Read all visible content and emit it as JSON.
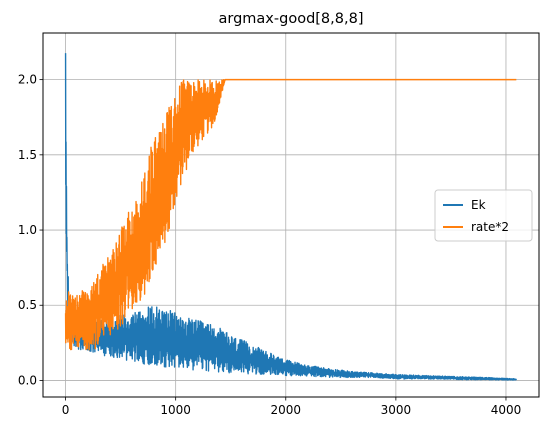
{
  "chart_data": {
    "type": "line",
    "title": "argmax-good[8,8,8]",
    "xlabel": "",
    "ylabel": "",
    "xlim": [
      -205,
      4300
    ],
    "ylim": [
      -0.11,
      2.31
    ],
    "xticks": [
      0,
      1000,
      2000,
      3000,
      4000
    ],
    "xtick_labels": [
      "0",
      "1000",
      "2000",
      "3000",
      "4000"
    ],
    "yticks": [
      0.0,
      0.5,
      1.0,
      1.5,
      2.0
    ],
    "ytick_labels": [
      "0.0",
      "0.5",
      "1.0",
      "1.5",
      "2.0"
    ],
    "grid": true,
    "legend_position": "center-right",
    "series": [
      {
        "name": "Ek",
        "color": "#1f77b4",
        "noisy": true,
        "x": [
          0,
          5,
          15,
          30,
          50,
          80,
          120,
          200,
          300,
          400,
          500,
          600,
          700,
          800,
          900,
          1000,
          1100,
          1200,
          1300,
          1400,
          1500,
          1600,
          1700,
          1800,
          1900,
          2000,
          2200,
          2400,
          2600,
          2800,
          3000,
          3200,
          3400,
          3600,
          3800,
          4000,
          4095
        ],
        "lower": [
          1.25,
          0.9,
          0.5,
          0.3,
          0.25,
          0.22,
          0.2,
          0.18,
          0.17,
          0.16,
          0.14,
          0.13,
          0.11,
          0.1,
          0.09,
          0.08,
          0.07,
          0.06,
          0.06,
          0.05,
          0.05,
          0.05,
          0.04,
          0.04,
          0.04,
          0.03,
          0.03,
          0.02,
          0.02,
          0.02,
          0.01,
          0.01,
          0.01,
          0.005,
          0.005,
          0.003,
          0.003
        ],
        "upper": [
          2.2,
          1.62,
          0.9,
          0.6,
          0.5,
          0.45,
          0.4,
          0.38,
          0.4,
          0.42,
          0.44,
          0.46,
          0.48,
          0.5,
          0.48,
          0.45,
          0.42,
          0.4,
          0.38,
          0.35,
          0.3,
          0.27,
          0.24,
          0.2,
          0.17,
          0.14,
          0.1,
          0.08,
          0.06,
          0.05,
          0.04,
          0.035,
          0.03,
          0.025,
          0.02,
          0.015,
          0.01
        ]
      },
      {
        "name": "rate*2",
        "color": "#ff7f0e",
        "noisy": true,
        "x": [
          0,
          30,
          80,
          150,
          250,
          350,
          450,
          550,
          650,
          750,
          850,
          950,
          1050,
          1150,
          1250,
          1350,
          1400,
          1450,
          1500,
          2000,
          2500,
          3000,
          3500,
          4095
        ],
        "lower": [
          0.25,
          0.2,
          0.2,
          0.2,
          0.2,
          0.25,
          0.3,
          0.4,
          0.5,
          0.6,
          0.8,
          1.0,
          1.3,
          1.5,
          1.6,
          1.7,
          1.85,
          2.0,
          2.0,
          2.0,
          2.0,
          2.0,
          2.0,
          2.0
        ],
        "upper": [
          0.55,
          0.6,
          0.55,
          0.6,
          0.65,
          0.8,
          0.9,
          1.1,
          1.2,
          1.5,
          1.7,
          1.85,
          2.0,
          2.0,
          2.0,
          2.0,
          2.0,
          2.0,
          2.0,
          2.0,
          2.0,
          2.0,
          2.0,
          2.0
        ]
      }
    ]
  }
}
